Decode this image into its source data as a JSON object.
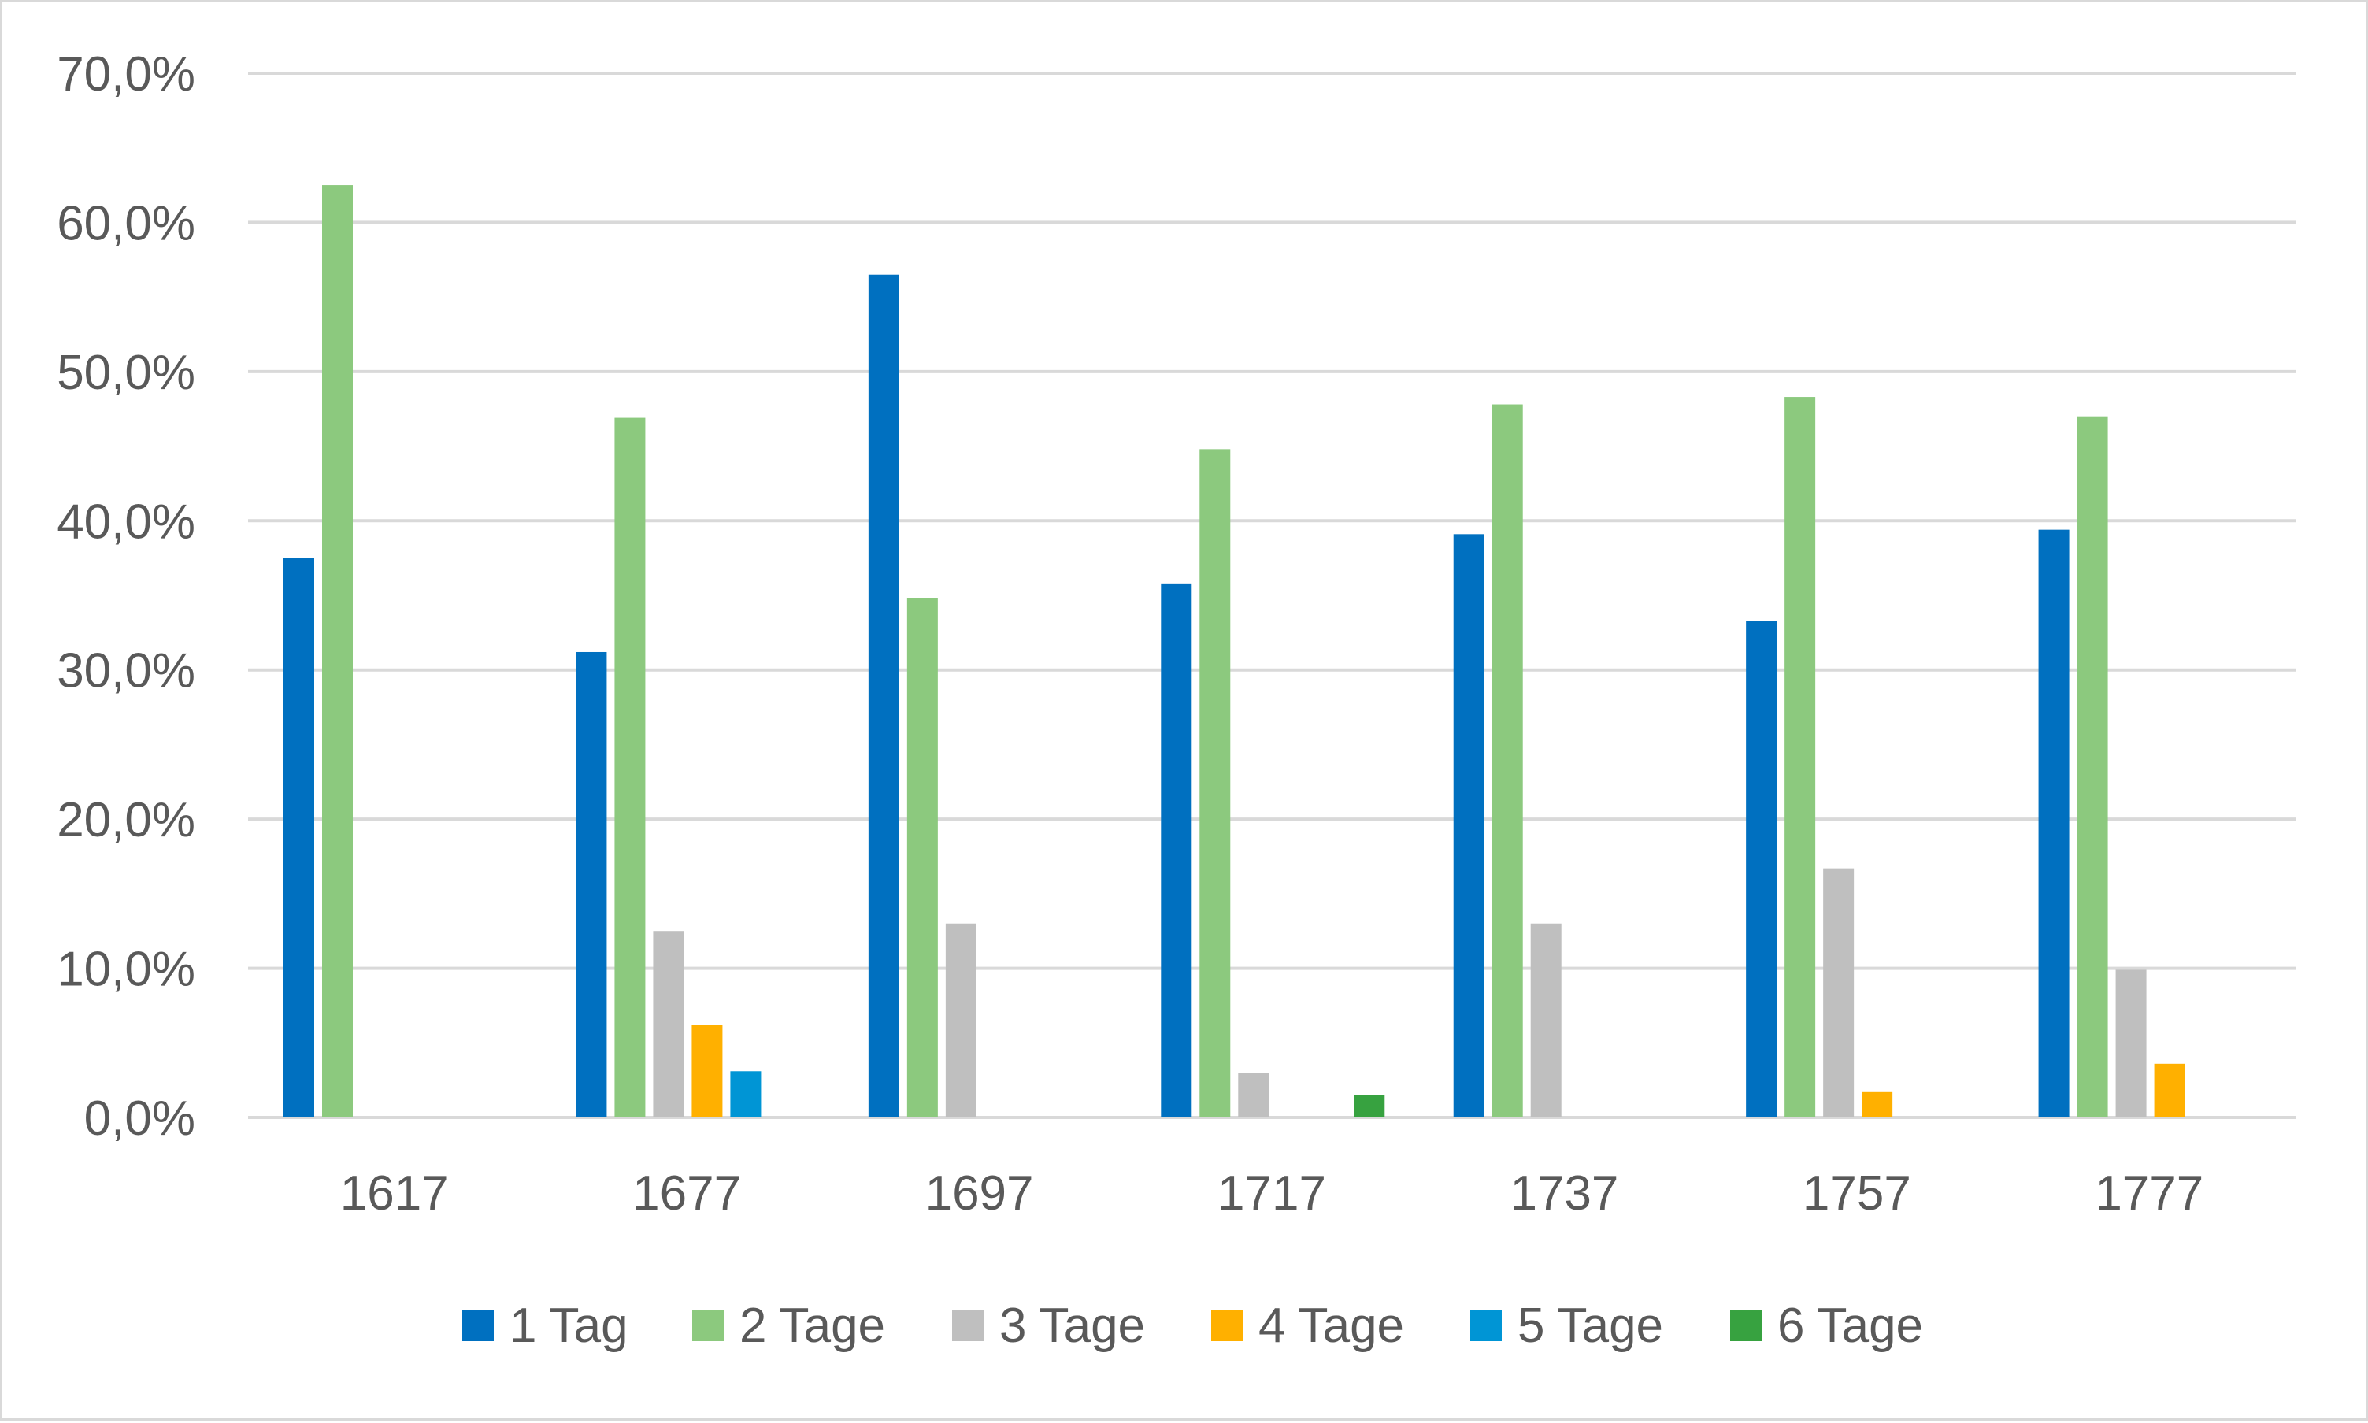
{
  "chart_data": {
    "type": "bar",
    "title": "",
    "xlabel": "",
    "ylabel": "",
    "categories": [
      "1617",
      "1677",
      "1697",
      "1717",
      "1737",
      "1757",
      "1777"
    ],
    "ylim": [
      0,
      70
    ],
    "y_ticks": [
      0,
      10,
      20,
      30,
      40,
      50,
      60,
      70
    ],
    "y_tick_labels": [
      "0,0%",
      "10,0%",
      "20,0%",
      "30,0%",
      "40,0%",
      "50,0%",
      "60,0%",
      "70,0%"
    ],
    "grid": true,
    "legend_position": "bottom",
    "series": [
      {
        "name": "1 Tag",
        "color": "#0070C0",
        "values": [
          37.5,
          31.2,
          56.5,
          35.8,
          39.1,
          33.3,
          39.4
        ]
      },
      {
        "name": "2 Tage",
        "color": "#8CC97E",
        "values": [
          62.5,
          46.9,
          34.8,
          44.8,
          47.8,
          48.3,
          47.0
        ]
      },
      {
        "name": "3 Tage",
        "color": "#BFBFBF",
        "values": [
          0,
          12.5,
          13.0,
          3.0,
          13.0,
          16.7,
          9.9
        ]
      },
      {
        "name": "4 Tage",
        "color": "#FFB000",
        "values": [
          0,
          6.2,
          0,
          0,
          0,
          1.7,
          3.6
        ]
      },
      {
        "name": "5 Tage",
        "color": "#0095D5",
        "values": [
          0,
          3.1,
          0,
          0,
          0,
          0,
          0
        ]
      },
      {
        "name": "6 Tage",
        "color": "#37A240",
        "values": [
          0,
          0,
          0,
          1.5,
          0,
          0,
          0
        ]
      }
    ]
  }
}
